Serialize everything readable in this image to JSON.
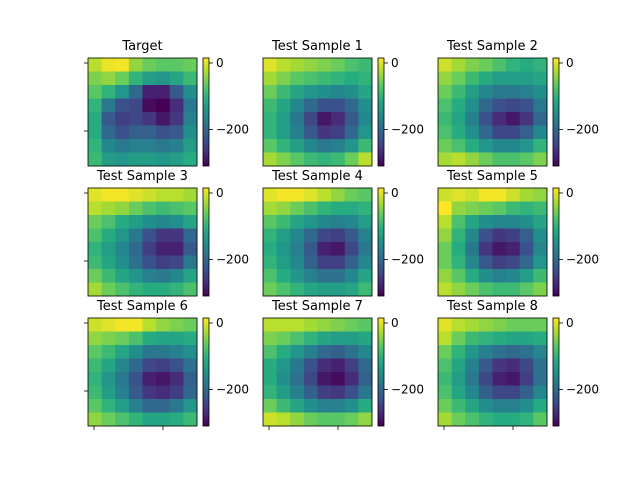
{
  "chart_data": {
    "type": "heatmap",
    "colormap": "viridis",
    "vmin": -310,
    "vmax": 15,
    "colorbar_ticks": [
      0,
      -200
    ],
    "grid": false,
    "panels": [
      {
        "title": "Target",
        "values": [
          [
            -20,
            5,
            10,
            -40,
            -60,
            -70,
            -70,
            -60
          ],
          [
            -50,
            -40,
            -60,
            -100,
            -130,
            -140,
            -120,
            -90
          ],
          [
            -70,
            -100,
            -140,
            -200,
            -280,
            -280,
            -220,
            -150
          ],
          [
            -100,
            -180,
            -230,
            -240,
            -300,
            -310,
            -270,
            -180
          ],
          [
            -110,
            -220,
            -250,
            -240,
            -260,
            -290,
            -260,
            -170
          ],
          [
            -110,
            -200,
            -230,
            -210,
            -210,
            -230,
            -220,
            -150
          ],
          [
            -100,
            -160,
            -180,
            -170,
            -170,
            -180,
            -170,
            -130
          ],
          [
            -90,
            -130,
            -140,
            -130,
            -130,
            -140,
            -130,
            -110
          ]
        ]
      },
      {
        "title": "Test Sample 1",
        "values": [
          [
            0,
            -20,
            -30,
            -40,
            -50,
            -60,
            -80,
            -90
          ],
          [
            -30,
            -50,
            -70,
            -80,
            -90,
            -100,
            -110,
            -100
          ],
          [
            -60,
            -90,
            -120,
            -140,
            -150,
            -160,
            -150,
            -120
          ],
          [
            -90,
            -120,
            -160,
            -200,
            -230,
            -230,
            -200,
            -150
          ],
          [
            -100,
            -130,
            -180,
            -240,
            -290,
            -270,
            -220,
            -160
          ],
          [
            -100,
            -130,
            -170,
            -220,
            -260,
            -250,
            -200,
            -140
          ],
          [
            -70,
            -100,
            -130,
            -160,
            -180,
            -170,
            -140,
            -90
          ],
          [
            -30,
            -50,
            -70,
            -90,
            -100,
            -90,
            -60,
            -20
          ]
        ]
      },
      {
        "title": "Test Sample 2",
        "values": [
          [
            -10,
            -30,
            -50,
            -60,
            -80,
            -100,
            -110,
            -100
          ],
          [
            -40,
            -60,
            -90,
            -110,
            -130,
            -130,
            -130,
            -120
          ],
          [
            -60,
            -90,
            -130,
            -160,
            -180,
            -180,
            -170,
            -150
          ],
          [
            -80,
            -110,
            -150,
            -200,
            -230,
            -240,
            -230,
            -180
          ],
          [
            -90,
            -120,
            -170,
            -230,
            -270,
            -290,
            -260,
            -200
          ],
          [
            -80,
            -110,
            -150,
            -200,
            -240,
            -240,
            -210,
            -160
          ],
          [
            -60,
            -80,
            -110,
            -140,
            -160,
            -160,
            -140,
            -100
          ],
          [
            -30,
            -20,
            -40,
            -60,
            -80,
            -80,
            -70,
            -50
          ]
        ]
      },
      {
        "title": "Test Sample 3",
        "values": [
          [
            0,
            10,
            10,
            0,
            -10,
            -20,
            -20,
            -30
          ],
          [
            -20,
            -30,
            -40,
            -60,
            -80,
            -90,
            -80,
            -70
          ],
          [
            -60,
            -80,
            -110,
            -130,
            -150,
            -160,
            -150,
            -120
          ],
          [
            -80,
            -110,
            -140,
            -180,
            -230,
            -260,
            -260,
            -200
          ],
          [
            -100,
            -130,
            -160,
            -200,
            -250,
            -280,
            -280,
            -220
          ],
          [
            -90,
            -120,
            -150,
            -190,
            -230,
            -250,
            -240,
            -180
          ],
          [
            -60,
            -90,
            -120,
            -140,
            -170,
            -180,
            -160,
            -120
          ],
          [
            -30,
            -60,
            -80,
            -100,
            -110,
            -110,
            -100,
            -80
          ]
        ]
      },
      {
        "title": "Test Sample 4",
        "values": [
          [
            0,
            10,
            10,
            0,
            -20,
            -40,
            -60,
            -70
          ],
          [
            -30,
            -40,
            -60,
            -80,
            -100,
            -110,
            -110,
            -100
          ],
          [
            -70,
            -90,
            -120,
            -140,
            -160,
            -170,
            -160,
            -130
          ],
          [
            -100,
            -130,
            -160,
            -200,
            -240,
            -250,
            -220,
            -170
          ],
          [
            -110,
            -140,
            -170,
            -220,
            -280,
            -290,
            -240,
            -180
          ],
          [
            -100,
            -130,
            -160,
            -210,
            -250,
            -250,
            -210,
            -160
          ],
          [
            -80,
            -110,
            -140,
            -170,
            -190,
            -190,
            -160,
            -120
          ],
          [
            -60,
            -80,
            -100,
            -120,
            -130,
            -130,
            -120,
            -90
          ]
        ]
      },
      {
        "title": "Test Sample 5",
        "values": [
          [
            -10,
            0,
            -10,
            10,
            10,
            -10,
            -30,
            -40
          ],
          [
            20,
            -40,
            -50,
            -60,
            -70,
            -90,
            -100,
            -90
          ],
          [
            -20,
            -80,
            -120,
            -150,
            -160,
            -160,
            -150,
            -120
          ],
          [
            -40,
            -100,
            -160,
            -230,
            -260,
            -250,
            -210,
            -150
          ],
          [
            -60,
            -110,
            -180,
            -260,
            -290,
            -280,
            -230,
            -160
          ],
          [
            -60,
            -100,
            -160,
            -220,
            -250,
            -240,
            -200,
            -140
          ],
          [
            -40,
            -70,
            -110,
            -150,
            -170,
            -160,
            -130,
            -90
          ],
          [
            -20,
            -40,
            -60,
            -80,
            -90,
            -90,
            -70,
            -50
          ]
        ]
      },
      {
        "title": "Test Sample 6",
        "values": [
          [
            -10,
            0,
            10,
            10,
            -20,
            -40,
            -50,
            -60
          ],
          [
            -40,
            -50,
            -60,
            -80,
            -110,
            -120,
            -120,
            -110
          ],
          [
            -70,
            -90,
            -120,
            -150,
            -180,
            -180,
            -170,
            -150
          ],
          [
            -90,
            -120,
            -160,
            -200,
            -240,
            -250,
            -230,
            -190
          ],
          [
            -100,
            -140,
            -180,
            -230,
            -280,
            -290,
            -270,
            -210
          ],
          [
            -90,
            -130,
            -170,
            -220,
            -260,
            -270,
            -250,
            -200
          ],
          [
            -70,
            -100,
            -130,
            -170,
            -200,
            -200,
            -180,
            -140
          ],
          [
            -40,
            -60,
            -80,
            -100,
            -120,
            -120,
            -110,
            -90
          ]
        ]
      },
      {
        "title": "Test Sample 7",
        "values": [
          [
            -20,
            -20,
            -20,
            -30,
            -40,
            -50,
            -60,
            -70
          ],
          [
            -50,
            -60,
            -80,
            -100,
            -120,
            -130,
            -130,
            -120
          ],
          [
            -80,
            -110,
            -140,
            -170,
            -200,
            -210,
            -190,
            -160
          ],
          [
            -110,
            -140,
            -180,
            -230,
            -270,
            -280,
            -250,
            -200
          ],
          [
            -110,
            -150,
            -190,
            -240,
            -290,
            -300,
            -270,
            -210
          ],
          [
            -100,
            -130,
            -170,
            -210,
            -250,
            -260,
            -230,
            -180
          ],
          [
            -60,
            -90,
            -120,
            -150,
            -170,
            -170,
            -150,
            -110
          ],
          [
            -10,
            -20,
            -40,
            -60,
            -70,
            -70,
            -60,
            -40
          ]
        ]
      },
      {
        "title": "Test Sample 8",
        "values": [
          [
            0,
            -20,
            -30,
            -40,
            -50,
            -60,
            -60,
            -60
          ],
          [
            -20,
            -60,
            -90,
            -100,
            -110,
            -120,
            -120,
            -110
          ],
          [
            -60,
            -100,
            -140,
            -170,
            -190,
            -200,
            -190,
            -160
          ],
          [
            -80,
            -120,
            -170,
            -220,
            -260,
            -270,
            -240,
            -190
          ],
          [
            -90,
            -130,
            -180,
            -240,
            -280,
            -290,
            -250,
            -190
          ],
          [
            -80,
            -120,
            -160,
            -210,
            -240,
            -240,
            -210,
            -160
          ],
          [
            -60,
            -90,
            -120,
            -150,
            -170,
            -170,
            -150,
            -110
          ],
          [
            -30,
            -60,
            -80,
            -100,
            -110,
            -110,
            -100,
            -70
          ]
        ]
      }
    ]
  }
}
